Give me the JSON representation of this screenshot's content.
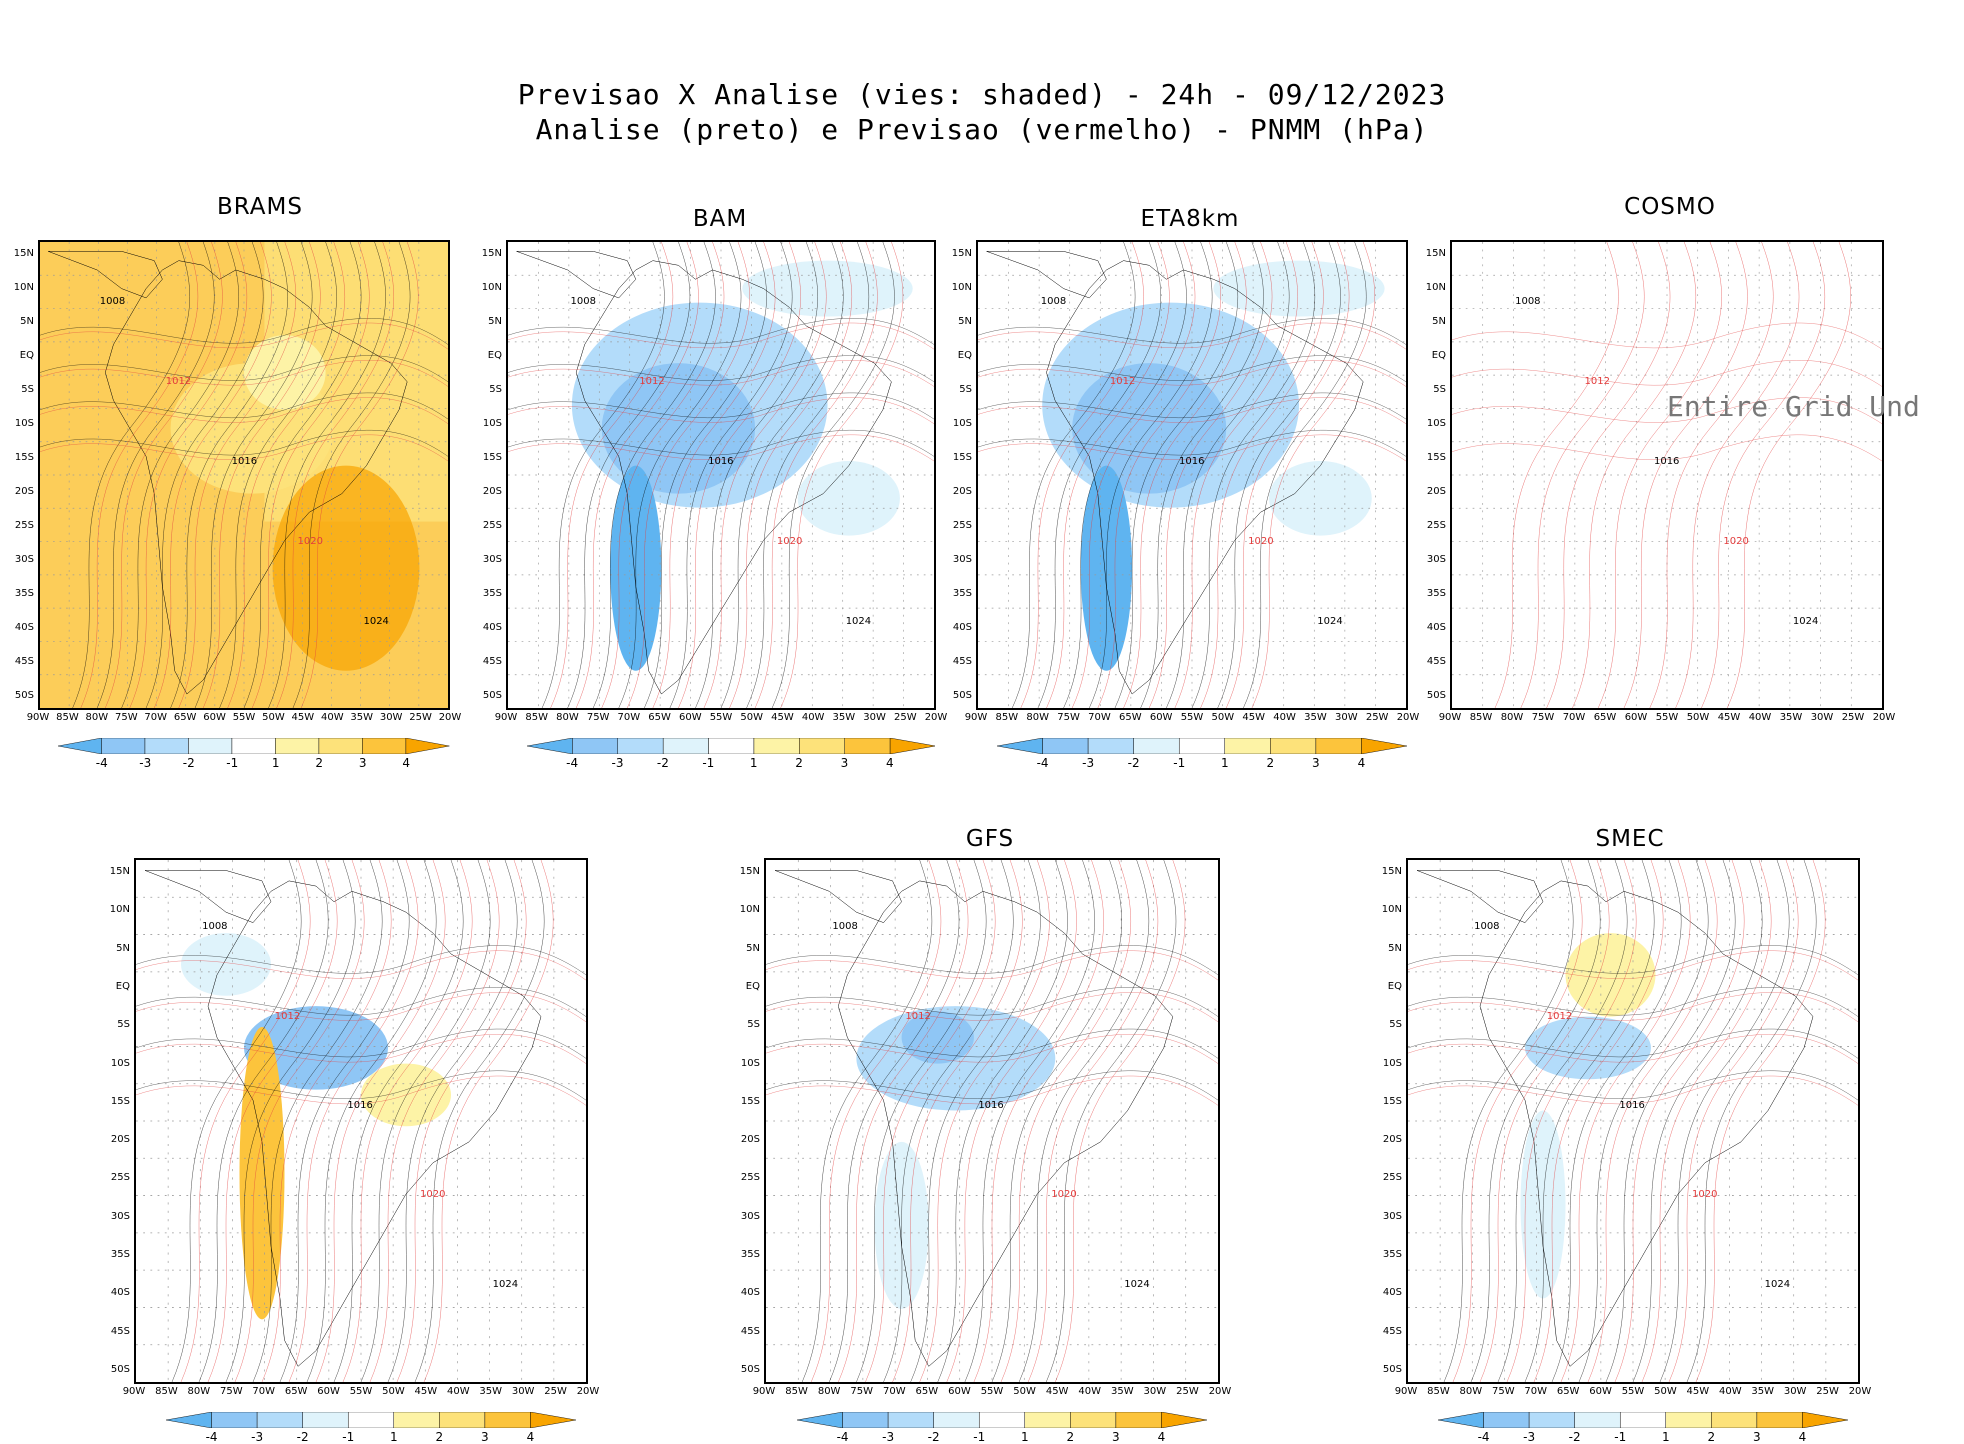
{
  "title_line1": "Previsao X Analise (vies: shaded) - 24h - 09/12/2023",
  "title_line2": "Analise (preto) e Previsao (vermelho) - PNMM (hPa)",
  "lat_labels": [
    "15N",
    "10N",
    "5N",
    "EQ",
    "5S",
    "10S",
    "15S",
    "20S",
    "25S",
    "30S",
    "35S",
    "40S",
    "45S",
    "50S"
  ],
  "lon_labels": [
    "90W",
    "85W",
    "80W",
    "75W",
    "70W",
    "65W",
    "60W",
    "55W",
    "50W",
    "45W",
    "40W",
    "35W",
    "30W",
    "25W",
    "20W"
  ],
  "colorbar_labels": [
    "-4",
    "-3",
    "-2",
    "-1",
    "1",
    "2",
    "3",
    "4"
  ],
  "colorbar_colors": [
    "#5fb4f0",
    "#8fc6f5",
    "#b3dcfa",
    "#dff3fb",
    "#ffffff",
    "#fdf3a6",
    "#fde27a",
    "#fcc43c",
    "#f8a400"
  ],
  "colors": {
    "analysis_contour": "#000000",
    "forecast_contour": "#e23c3c",
    "land_outline": "#000000"
  },
  "panels": [
    {
      "label": "BRAMS",
      "bias": "positive",
      "undefined_text": "",
      "contour_labels": [
        "1008",
        "1012",
        "1016",
        "1020",
        "1024"
      ]
    },
    {
      "label": "BAM",
      "bias": "negative",
      "undefined_text": "",
      "contour_labels": [
        "1008",
        "1012",
        "1016",
        "1020",
        "1024"
      ]
    },
    {
      "label": "ETA8km",
      "bias": "negative",
      "undefined_text": "",
      "contour_labels": [
        "1008",
        "1012",
        "1016",
        "1020",
        "1024"
      ]
    },
    {
      "label": "COSMO",
      "bias": "none",
      "undefined_text": "Entire Grid Und",
      "contour_labels": [
        "1008",
        "1012",
        "1016",
        "1020",
        "1024"
      ]
    },
    {
      "label": "",
      "bias": "mixed",
      "undefined_text": "",
      "contour_labels": [
        "1008",
        "1012",
        "1016",
        "1020",
        "1024"
      ]
    },
    {
      "label": "GFS",
      "bias": "light-negative",
      "undefined_text": "",
      "contour_labels": [
        "1008",
        "1012",
        "1016",
        "1020",
        "1024"
      ]
    },
    {
      "label": "SMEC",
      "bias": "light-mixed",
      "undefined_text": "",
      "contour_labels": [
        "1008",
        "1012",
        "1016",
        "1020",
        "1024"
      ]
    }
  ]
}
